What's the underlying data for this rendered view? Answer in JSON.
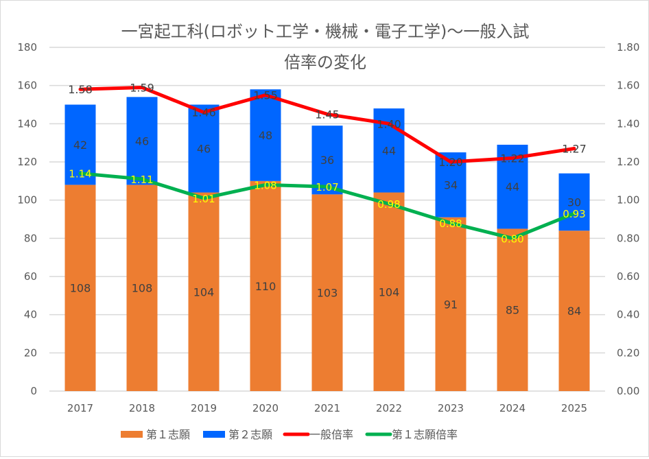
{
  "chart_data": {
    "type": "bar",
    "subtype": "stacked-bar-with-lines-dual-axis",
    "title_line1": "一宮起工科(ロボット工学・機械・電子工学)～一般入試",
    "title_line2": "倍率の変化",
    "categories": [
      "2017",
      "2018",
      "2019",
      "2020",
      "2021",
      "2022",
      "2023",
      "2024",
      "2025"
    ],
    "series": [
      {
        "name": "第１志願",
        "type": "bar",
        "axis": "left",
        "color": "#ED7D31",
        "values": [
          108,
          108,
          104,
          110,
          103,
          104,
          91,
          85,
          84
        ]
      },
      {
        "name": "第２志願",
        "type": "bar",
        "axis": "left",
        "color": "#0066FF",
        "values": [
          42,
          46,
          46,
          48,
          36,
          44,
          34,
          44,
          30
        ]
      },
      {
        "name": "一般倍率",
        "type": "line",
        "axis": "right",
        "color": "#FF0000",
        "values": [
          1.58,
          1.59,
          1.46,
          1.55,
          1.45,
          1.4,
          1.2,
          1.22,
          1.27
        ],
        "labels": [
          "1.58",
          "1.59",
          "1.46",
          "1.55",
          "1.45",
          "1.40",
          "1.20",
          "1.22",
          "1.27"
        ]
      },
      {
        "name": "第１志願倍率",
        "type": "line",
        "axis": "right",
        "color": "#00B050",
        "values": [
          1.14,
          1.11,
          1.01,
          1.08,
          1.07,
          0.98,
          0.88,
          0.8,
          0.93
        ],
        "labels": [
          "1.14",
          "1.11",
          "1.01",
          "1.08",
          "1.07",
          "0.98",
          "0.88",
          "0.80",
          "0.93"
        ]
      }
    ],
    "left_axis": {
      "min": 0,
      "max": 180,
      "step": 20,
      "ticks": [
        "0",
        "20",
        "40",
        "60",
        "80",
        "100",
        "120",
        "140",
        "160",
        "180"
      ]
    },
    "right_axis": {
      "min": 0,
      "max": 1.8,
      "step": 0.2,
      "ticks": [
        "0.00",
        "0.20",
        "0.40",
        "0.60",
        "0.80",
        "1.00",
        "1.20",
        "1.40",
        "1.60",
        "1.80"
      ]
    },
    "grid": true,
    "legend_position": "bottom",
    "legend": [
      "第１志願",
      "第２志願",
      "一般倍率",
      "第１志願倍率"
    ]
  }
}
